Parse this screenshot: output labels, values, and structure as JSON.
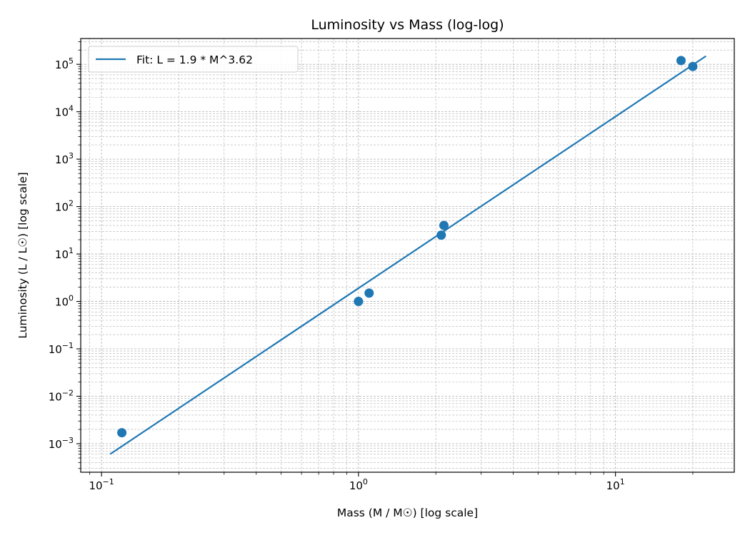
{
  "chart_data": {
    "type": "scatter",
    "title": "Luminosity vs Mass (log-log)",
    "xlabel": "Mass (M / M☉) [log scale]",
    "ylabel": "Luminosity (L / L☉) [log scale]",
    "xscale": "log",
    "yscale": "log",
    "xlim": [
      0.083,
      29
    ],
    "ylim": [
      0.00025,
      350000
    ],
    "grid": true,
    "legend_position": "top-left",
    "x_ticks": [
      {
        "value": 0.1,
        "mantissa": "10",
        "exp": "−1"
      },
      {
        "value": 1,
        "mantissa": "10",
        "exp": "0"
      },
      {
        "value": 10,
        "mantissa": "10",
        "exp": "1"
      }
    ],
    "y_ticks": [
      {
        "value": 0.001,
        "mantissa": "10",
        "exp": "−3"
      },
      {
        "value": 0.01,
        "mantissa": "10",
        "exp": "−2"
      },
      {
        "value": 0.1,
        "mantissa": "10",
        "exp": "−1"
      },
      {
        "value": 1,
        "mantissa": "10",
        "exp": "0"
      },
      {
        "value": 10,
        "mantissa": "10",
        "exp": "1"
      },
      {
        "value": 100,
        "mantissa": "10",
        "exp": "2"
      },
      {
        "value": 1000,
        "mantissa": "10",
        "exp": "3"
      },
      {
        "value": 10000,
        "mantissa": "10",
        "exp": "4"
      },
      {
        "value": 100000,
        "mantissa": "10",
        "exp": "5"
      }
    ],
    "points": [
      {
        "x": 0.12,
        "y": 0.0017
      },
      {
        "x": 1.0,
        "y": 1.0
      },
      {
        "x": 1.1,
        "y": 1.5
      },
      {
        "x": 2.1,
        "y": 25
      },
      {
        "x": 2.15,
        "y": 40
      },
      {
        "x": 18,
        "y": 120000
      },
      {
        "x": 20,
        "y": 90000
      }
    ],
    "fit": {
      "label": "Fit: L = 1.9 * M^3.62",
      "coef": 1.9,
      "exponent": 3.62,
      "x_range": [
        0.108,
        22.5
      ]
    },
    "colors": {
      "series": "#1f77b4",
      "grid": "#b0b0b0",
      "axis": "#000000"
    }
  }
}
